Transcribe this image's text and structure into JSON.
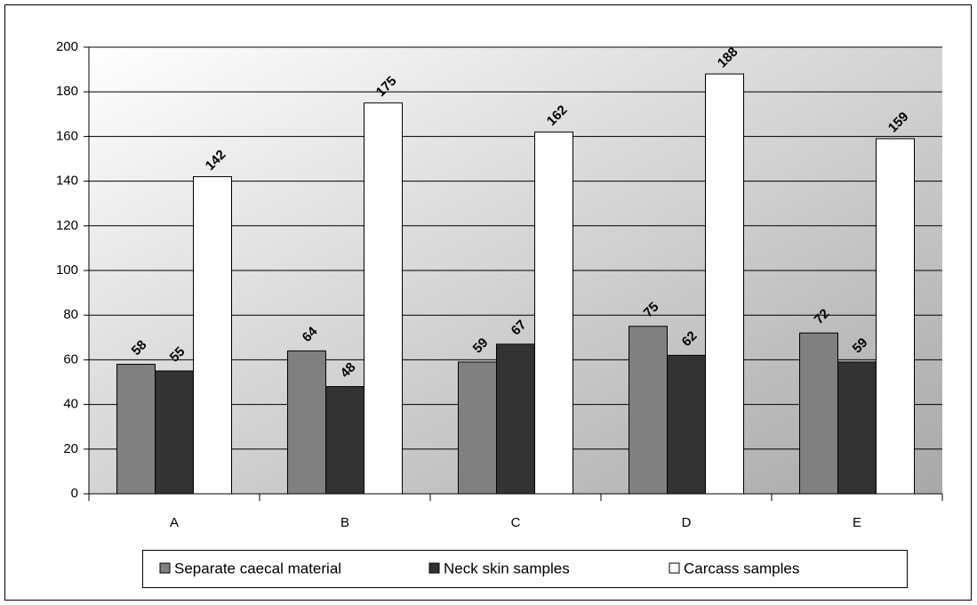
{
  "chart_data": {
    "type": "bar",
    "categories": [
      "A",
      "B",
      "C",
      "D",
      "E"
    ],
    "series": [
      {
        "name": "Separate caecal material",
        "color": "#808080",
        "values": [
          58,
          64,
          59,
          75,
          72
        ]
      },
      {
        "name": "Neck skin samples",
        "color": "#333333",
        "values": [
          55,
          48,
          67,
          62,
          59
        ]
      },
      {
        "name": "Carcass samples",
        "color": "#ffffff",
        "values": [
          142,
          175,
          162,
          188,
          159
        ]
      }
    ],
    "ylim": [
      0,
      200
    ],
    "yticks": [
      0,
      20,
      40,
      60,
      80,
      100,
      120,
      140,
      160,
      180,
      200
    ],
    "grid": true,
    "legend": "bottom"
  }
}
